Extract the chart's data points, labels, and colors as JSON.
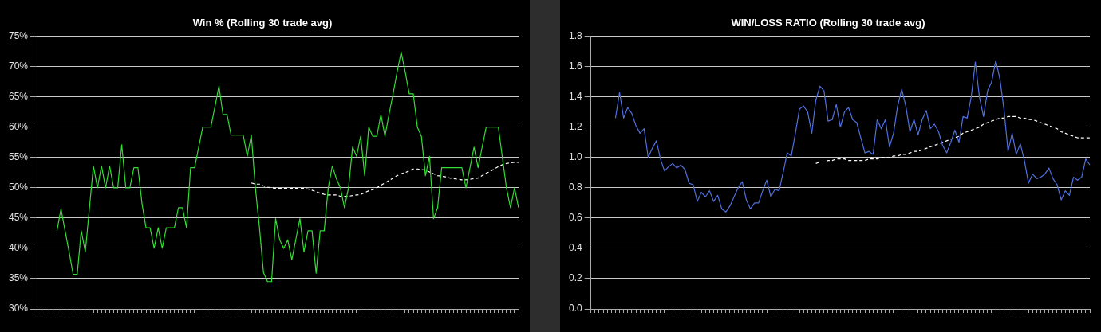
{
  "chart_data": [
    {
      "type": "line",
      "title": "Win % (Rolling 30 trade avg)",
      "ylim": [
        30,
        75
      ],
      "tick_labels": "y",
      "grid": "y",
      "legend": false,
      "marker": "none",
      "yticks": [
        {
          "value": 30,
          "label": "30%"
        },
        {
          "value": 35,
          "label": "35%"
        },
        {
          "value": 40,
          "label": "40%"
        },
        {
          "value": 45,
          "label": "45%"
        },
        {
          "value": 50,
          "label": "50%"
        },
        {
          "value": 55,
          "label": "55%"
        },
        {
          "value": 60,
          "label": "60%"
        },
        {
          "value": 65,
          "label": "65%"
        },
        {
          "value": 70,
          "label": "70%"
        },
        {
          "value": 75,
          "label": "75%"
        }
      ],
      "categories": [
        null,
        null,
        null,
        null,
        null,
        null,
        null,
        null,
        null,
        null,
        null,
        null,
        null,
        null,
        null,
        null,
        null,
        null,
        null,
        null,
        null,
        null,
        null,
        null,
        null,
        null,
        null,
        null,
        null,
        null,
        null,
        null,
        null,
        null,
        null,
        null,
        null,
        null,
        null,
        null,
        null,
        null,
        null,
        null,
        null,
        null,
        null,
        null,
        null,
        null,
        null,
        null,
        null,
        null,
        null,
        null,
        null,
        null,
        null,
        null,
        null,
        null,
        null,
        null,
        null,
        null,
        null,
        null,
        null,
        null,
        null,
        null,
        null,
        null,
        null,
        null,
        null,
        null,
        null,
        null,
        null,
        null,
        null,
        null,
        null,
        null,
        null,
        null,
        null,
        null,
        null,
        null,
        null,
        null,
        null,
        null,
        null,
        null,
        null,
        null,
        null,
        null,
        null,
        null,
        null,
        null,
        null,
        null,
        null,
        null,
        null,
        null,
        null,
        null,
        null,
        null,
        null,
        null,
        null,
        null
      ],
      "series": [
        {
          "color": "#33dd33",
          "line_style": "solid",
          "values": [
            null,
            null,
            null,
            null,
            null,
            42.9,
            46.5,
            42.9,
            39.4,
            35.7,
            35.7,
            42.9,
            39.4,
            46.5,
            53.6,
            50,
            53.6,
            50,
            53.6,
            50,
            50,
            57.1,
            50,
            50,
            53.3,
            53.3,
            47.4,
            43.4,
            43.4,
            40,
            43.4,
            40,
            43.4,
            43.4,
            43.4,
            46.7,
            46.7,
            43.4,
            53.3,
            53.3,
            56.7,
            60,
            60,
            60,
            63.3,
            66.8,
            62.1,
            62.1,
            58.7,
            58.7,
            58.7,
            58.7,
            55.2,
            58.7,
            50,
            43.5,
            36,
            34.5,
            34.5,
            44.9,
            41.4,
            40,
            41.4,
            38.1,
            41.5,
            44.9,
            39.4,
            42.9,
            42.9,
            35.9,
            42.9,
            42.9,
            50,
            53.6,
            51.5,
            50,
            46.7,
            50,
            56.7,
            55.2,
            58.5,
            52,
            60,
            58.5,
            58.5,
            62.1,
            58.5,
            62.1,
            65.5,
            69.1,
            72.4,
            69.1,
            65.5,
            65.5,
            60,
            58.5,
            52,
            55.2,
            44.9,
            46.7,
            53.3,
            53.3,
            53.3,
            53.3,
            53.3,
            53.3,
            50,
            53.3,
            56.7,
            53.3,
            56.7,
            60,
            60,
            60,
            60,
            55,
            50,
            46.7,
            50,
            46.7
          ]
        },
        {
          "color": "#ffffff",
          "line_style": "dashed",
          "values": [
            null,
            null,
            null,
            null,
            null,
            null,
            null,
            null,
            null,
            null,
            null,
            null,
            null,
            null,
            null,
            null,
            null,
            null,
            null,
            null,
            null,
            null,
            null,
            null,
            null,
            null,
            null,
            null,
            null,
            null,
            null,
            null,
            null,
            null,
            null,
            null,
            null,
            null,
            null,
            null,
            null,
            null,
            null,
            null,
            null,
            null,
            null,
            null,
            null,
            null,
            null,
            null,
            null,
            50.8,
            50.6,
            50.6,
            50.3,
            50.1,
            50,
            49.9,
            49.9,
            49.9,
            49.9,
            49.9,
            49.9,
            49.9,
            49.9,
            49.8,
            49.6,
            49.3,
            49.1,
            48.9,
            48.8,
            48.8,
            48.8,
            48.6,
            48.6,
            48.6,
            48.7,
            48.8,
            48.9,
            49.2,
            49.5,
            49.7,
            50,
            50.4,
            50.8,
            51.2,
            51.6,
            52,
            52.3,
            52.5,
            52.8,
            53.1,
            53.1,
            53,
            52.9,
            52.6,
            52.3,
            52,
            51.9,
            51.8,
            51.6,
            51.5,
            51.4,
            51.3,
            51.3,
            51.4,
            51.5,
            51.6,
            52,
            52.4,
            52.7,
            53.1,
            53.5,
            53.8,
            54,
            54.1,
            54.2,
            54.2
          ]
        }
      ]
    },
    {
      "type": "line",
      "title": "WIN/LOSS RATIO (Rolling 30 trade avg)",
      "ylim": [
        0,
        1.8
      ],
      "tick_labels": "y",
      "grid": "y",
      "legend": false,
      "marker": "none",
      "yticks": [
        {
          "value": 0,
          "label": "0.0"
        },
        {
          "value": 0.2,
          "label": "0.2"
        },
        {
          "value": 0.4,
          "label": "0.4"
        },
        {
          "value": 0.6,
          "label": "0.6"
        },
        {
          "value": 0.8,
          "label": "0.8"
        },
        {
          "value": 1,
          "label": "1.0"
        },
        {
          "value": 1.2,
          "label": "1.2"
        },
        {
          "value": 1.4,
          "label": "1.4"
        },
        {
          "value": 1.6,
          "label": "1.6"
        },
        {
          "value": 1.8,
          "label": "1.8"
        }
      ],
      "categories": [
        null,
        null,
        null,
        null,
        null,
        null,
        null,
        null,
        null,
        null,
        null,
        null,
        null,
        null,
        null,
        null,
        null,
        null,
        null,
        null,
        null,
        null,
        null,
        null,
        null,
        null,
        null,
        null,
        null,
        null,
        null,
        null,
        null,
        null,
        null,
        null,
        null,
        null,
        null,
        null,
        null,
        null,
        null,
        null,
        null,
        null,
        null,
        null,
        null,
        null,
        null,
        null,
        null,
        null,
        null,
        null,
        null,
        null,
        null,
        null,
        null,
        null,
        null,
        null,
        null,
        null,
        null,
        null,
        null,
        null,
        null,
        null,
        null,
        null,
        null,
        null,
        null,
        null,
        null,
        null,
        null,
        null,
        null,
        null,
        null,
        null,
        null,
        null,
        null,
        null,
        null,
        null,
        null,
        null,
        null,
        null,
        null,
        null,
        null,
        null,
        null,
        null,
        null,
        null,
        null,
        null,
        null,
        null,
        null,
        null,
        null,
        null,
        null,
        null,
        null,
        null,
        null,
        null,
        null,
        null,
        null,
        null,
        null
      ],
      "series": [
        {
          "color": "#5070e0",
          "line_style": "solid",
          "values": [
            null,
            null,
            null,
            null,
            null,
            null,
            1.26,
            1.43,
            1.26,
            1.33,
            1.29,
            1.21,
            1.16,
            1.19,
            1.0,
            1.06,
            1.11,
            0.99,
            0.91,
            0.94,
            0.96,
            0.93,
            0.95,
            0.92,
            0.83,
            0.82,
            0.71,
            0.77,
            0.74,
            0.78,
            0.71,
            0.75,
            0.66,
            0.64,
            0.68,
            0.74,
            0.8,
            0.84,
            0.72,
            0.66,
            0.7,
            0.7,
            0.78,
            0.85,
            0.74,
            0.79,
            0.78,
            0.9,
            1.03,
            1.01,
            1.16,
            1.32,
            1.34,
            1.3,
            1.16,
            1.38,
            1.47,
            1.44,
            1.24,
            1.25,
            1.35,
            1.2,
            1.3,
            1.33,
            1.25,
            1.23,
            1.13,
            1.03,
            1.04,
            1.02,
            1.25,
            1.19,
            1.25,
            1.07,
            1.16,
            1.34,
            1.45,
            1.34,
            1.17,
            1.25,
            1.15,
            1.25,
            1.31,
            1.19,
            1.22,
            1.17,
            1.08,
            1.03,
            1.1,
            1.18,
            1.1,
            1.27,
            1.26,
            1.4,
            1.63,
            1.4,
            1.27,
            1.44,
            1.5,
            1.64,
            1.52,
            1.32,
            1.04,
            1.16,
            1.02,
            1.09,
            0.98,
            0.83,
            0.89,
            0.86,
            0.87,
            0.89,
            0.93,
            0.86,
            0.82,
            0.72,
            0.78,
            0.75,
            0.87,
            0.85,
            0.87,
            0.99,
            0.95
          ]
        },
        {
          "color": "#ffffff",
          "line_style": "dashed",
          "values": [
            null,
            null,
            null,
            null,
            null,
            null,
            null,
            null,
            null,
            null,
            null,
            null,
            null,
            null,
            null,
            null,
            null,
            null,
            null,
            null,
            null,
            null,
            null,
            null,
            null,
            null,
            null,
            null,
            null,
            null,
            null,
            null,
            null,
            null,
            null,
            null,
            null,
            null,
            null,
            null,
            null,
            null,
            null,
            null,
            null,
            null,
            null,
            null,
            null,
            null,
            null,
            null,
            null,
            null,
            null,
            0.96,
            0.97,
            0.97,
            0.98,
            0.98,
            0.99,
            0.99,
            0.99,
            0.98,
            0.98,
            0.98,
            0.98,
            0.98,
            0.99,
            0.99,
            0.99,
            1.0,
            1.0,
            1.0,
            1.01,
            1.01,
            1.02,
            1.02,
            1.03,
            1.04,
            1.04,
            1.05,
            1.06,
            1.07,
            1.08,
            1.09,
            1.1,
            1.11,
            1.12,
            1.13,
            1.14,
            1.16,
            1.17,
            1.18,
            1.19,
            1.2,
            1.22,
            1.23,
            1.24,
            1.25,
            1.26,
            1.26,
            1.27,
            1.27,
            1.27,
            1.26,
            1.26,
            1.25,
            1.25,
            1.24,
            1.23,
            1.22,
            1.21,
            1.2,
            1.19,
            1.17,
            1.16,
            1.15,
            1.14,
            1.13,
            1.13,
            1.13,
            1.13
          ]
        }
      ]
    }
  ]
}
